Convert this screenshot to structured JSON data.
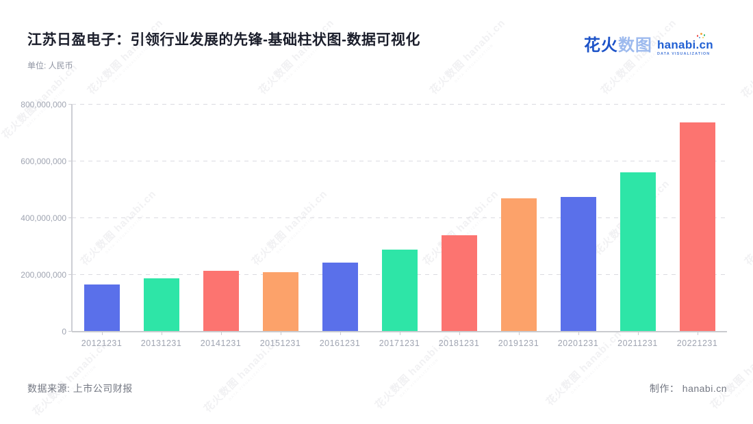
{
  "header": {
    "title": "江苏日盈电子：引领行业发展的先锋-基础柱状图-数据可视化",
    "unit_label": "单位: 人民币",
    "logo": {
      "brand_strong": "花火",
      "brand_light": "数图",
      "domain": "hanabi.cn",
      "tagline": "DATA VISUALIZATION"
    }
  },
  "footer": {
    "source": "数据来源: 上市公司财报",
    "credit_label": "制作：",
    "credit_value": "hanabi.cn"
  },
  "watermark": {
    "line1": "花火数图 hanabi.cn",
    "line2": "DATA VISUALIZATION"
  },
  "chart_data": {
    "type": "bar",
    "title": "江苏日盈电子：引领行业发展的先锋-基础柱状图-数据可视化",
    "unit": "人民币",
    "categories": [
      "20121231",
      "20131231",
      "20141231",
      "20151231",
      "20161231",
      "20171231",
      "20181231",
      "20191231",
      "20201231",
      "20211231",
      "20221231"
    ],
    "values": [
      164000000,
      187000000,
      213000000,
      208000000,
      241000000,
      287000000,
      338000000,
      469000000,
      474000000,
      561000000,
      735000000
    ],
    "palette": [
      "#5A70EA",
      "#2EE5A7",
      "#FC7470",
      "#FCA26A"
    ],
    "ylim": [
      0,
      800000000
    ],
    "yticks": [
      0,
      200000000,
      400000000,
      600000000,
      800000000
    ],
    "ytick_labels": [
      "0",
      "200,000,000",
      "400,000,000",
      "600,000,000",
      "800,000,000"
    ],
    "xlabel": "",
    "ylabel": "",
    "grid": "horizontal-dashed",
    "legend": "none"
  }
}
